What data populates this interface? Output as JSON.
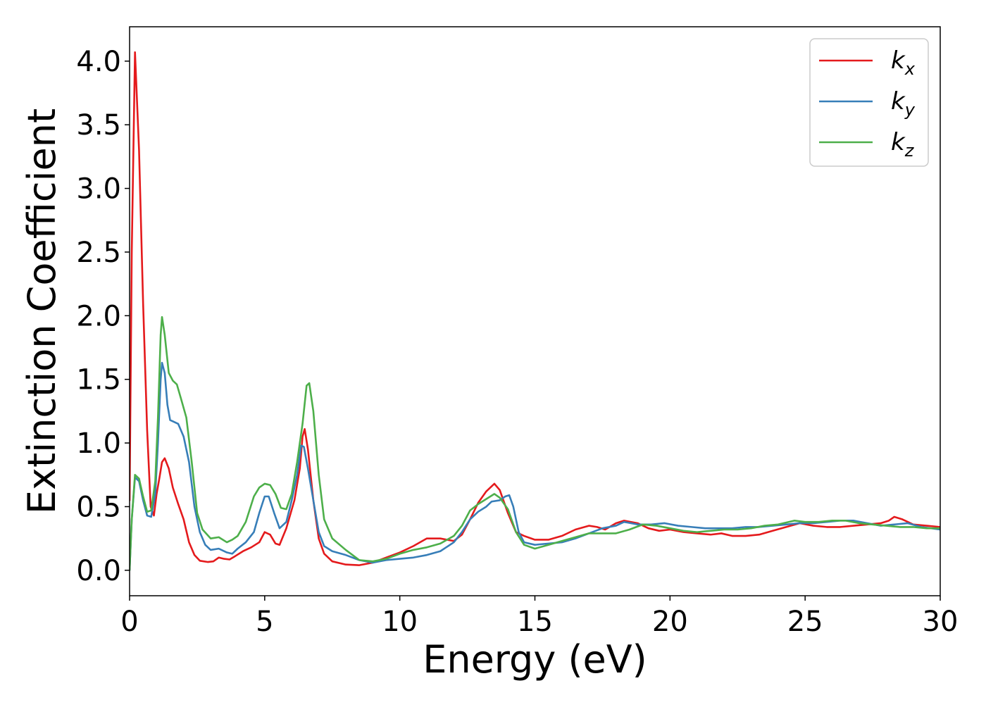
{
  "chart_data": {
    "type": "line",
    "title": "",
    "xlabel": "Energy (eV)",
    "ylabel": "Extinction Coefficient",
    "xlim": [
      0,
      30
    ],
    "ylim": [
      -0.2,
      4.27
    ],
    "xticks": [
      0,
      5,
      10,
      15,
      20,
      25,
      30
    ],
    "yticks": [
      0.0,
      0.5,
      1.0,
      1.5,
      2.0,
      2.5,
      3.0,
      3.5,
      4.0
    ],
    "xtick_labels": [
      "0",
      "5",
      "10",
      "15",
      "20",
      "25",
      "30"
    ],
    "ytick_labels": [
      "0.0",
      "0.5",
      "1.0",
      "1.5",
      "2.0",
      "2.5",
      "3.0",
      "3.5",
      "4.0"
    ],
    "grid": false,
    "legend_position": "top-right",
    "series": [
      {
        "name": "k",
        "subscript": "x",
        "color": "#e41a1c",
        "points": [
          [
            0.0,
            0.55
          ],
          [
            0.08,
            2.5
          ],
          [
            0.2,
            4.07
          ],
          [
            0.35,
            3.3
          ],
          [
            0.5,
            2.1
          ],
          [
            0.65,
            1.1
          ],
          [
            0.78,
            0.5
          ],
          [
            0.9,
            0.43
          ],
          [
            1.0,
            0.6
          ],
          [
            1.1,
            0.72
          ],
          [
            1.2,
            0.85
          ],
          [
            1.3,
            0.88
          ],
          [
            1.45,
            0.8
          ],
          [
            1.6,
            0.65
          ],
          [
            1.8,
            0.52
          ],
          [
            2.0,
            0.4
          ],
          [
            2.2,
            0.22
          ],
          [
            2.4,
            0.12
          ],
          [
            2.6,
            0.075
          ],
          [
            2.9,
            0.065
          ],
          [
            3.1,
            0.07
          ],
          [
            3.3,
            0.1
          ],
          [
            3.5,
            0.09
          ],
          [
            3.7,
            0.085
          ],
          [
            3.9,
            0.11
          ],
          [
            4.2,
            0.15
          ],
          [
            4.5,
            0.18
          ],
          [
            4.8,
            0.22
          ],
          [
            5.0,
            0.3
          ],
          [
            5.2,
            0.28
          ],
          [
            5.4,
            0.21
          ],
          [
            5.55,
            0.2
          ],
          [
            5.8,
            0.33
          ],
          [
            6.1,
            0.55
          ],
          [
            6.3,
            0.8
          ],
          [
            6.4,
            1.05
          ],
          [
            6.48,
            1.11
          ],
          [
            6.6,
            0.95
          ],
          [
            6.8,
            0.55
          ],
          [
            7.0,
            0.25
          ],
          [
            7.2,
            0.13
          ],
          [
            7.5,
            0.07
          ],
          [
            8.0,
            0.045
          ],
          [
            8.5,
            0.04
          ],
          [
            9.0,
            0.06
          ],
          [
            9.5,
            0.1
          ],
          [
            10.0,
            0.14
          ],
          [
            10.5,
            0.19
          ],
          [
            11.0,
            0.25
          ],
          [
            11.5,
            0.25
          ],
          [
            12.0,
            0.23
          ],
          [
            12.3,
            0.28
          ],
          [
            12.6,
            0.4
          ],
          [
            12.9,
            0.53
          ],
          [
            13.2,
            0.62
          ],
          [
            13.5,
            0.68
          ],
          [
            13.7,
            0.63
          ],
          [
            14.0,
            0.45
          ],
          [
            14.3,
            0.3
          ],
          [
            14.6,
            0.27
          ],
          [
            15.0,
            0.24
          ],
          [
            15.5,
            0.24
          ],
          [
            16.0,
            0.27
          ],
          [
            16.5,
            0.32
          ],
          [
            17.0,
            0.35
          ],
          [
            17.3,
            0.34
          ],
          [
            17.6,
            0.32
          ],
          [
            18.0,
            0.37
          ],
          [
            18.3,
            0.39
          ],
          [
            18.8,
            0.37
          ],
          [
            19.2,
            0.33
          ],
          [
            19.6,
            0.31
          ],
          [
            20.0,
            0.32
          ],
          [
            20.5,
            0.3
          ],
          [
            21.0,
            0.29
          ],
          [
            21.5,
            0.28
          ],
          [
            21.9,
            0.29
          ],
          [
            22.3,
            0.27
          ],
          [
            22.8,
            0.27
          ],
          [
            23.3,
            0.28
          ],
          [
            23.8,
            0.31
          ],
          [
            24.3,
            0.34
          ],
          [
            24.8,
            0.37
          ],
          [
            25.3,
            0.35
          ],
          [
            25.8,
            0.34
          ],
          [
            26.3,
            0.34
          ],
          [
            26.8,
            0.35
          ],
          [
            27.3,
            0.36
          ],
          [
            27.8,
            0.37
          ],
          [
            28.1,
            0.39
          ],
          [
            28.3,
            0.42
          ],
          [
            28.6,
            0.4
          ],
          [
            29.0,
            0.36
          ],
          [
            29.5,
            0.35
          ],
          [
            30.0,
            0.34
          ]
        ]
      },
      {
        "name": "k",
        "subscript": "y",
        "color": "#377eb8",
        "points": [
          [
            0.0,
            0.0
          ],
          [
            0.08,
            0.4
          ],
          [
            0.2,
            0.73
          ],
          [
            0.35,
            0.7
          ],
          [
            0.5,
            0.55
          ],
          [
            0.65,
            0.43
          ],
          [
            0.8,
            0.42
          ],
          [
            0.95,
            0.6
          ],
          [
            1.05,
            1.0
          ],
          [
            1.15,
            1.5
          ],
          [
            1.2,
            1.63
          ],
          [
            1.3,
            1.55
          ],
          [
            1.4,
            1.3
          ],
          [
            1.5,
            1.18
          ],
          [
            1.6,
            1.17
          ],
          [
            1.8,
            1.15
          ],
          [
            2.0,
            1.05
          ],
          [
            2.2,
            0.85
          ],
          [
            2.4,
            0.5
          ],
          [
            2.6,
            0.3
          ],
          [
            2.8,
            0.2
          ],
          [
            3.0,
            0.16
          ],
          [
            3.3,
            0.17
          ],
          [
            3.6,
            0.14
          ],
          [
            3.8,
            0.13
          ],
          [
            4.0,
            0.17
          ],
          [
            4.3,
            0.22
          ],
          [
            4.6,
            0.3
          ],
          [
            4.8,
            0.45
          ],
          [
            5.0,
            0.58
          ],
          [
            5.15,
            0.58
          ],
          [
            5.35,
            0.45
          ],
          [
            5.55,
            0.33
          ],
          [
            5.8,
            0.38
          ],
          [
            6.0,
            0.55
          ],
          [
            6.2,
            0.75
          ],
          [
            6.35,
            0.98
          ],
          [
            6.45,
            0.97
          ],
          [
            6.6,
            0.8
          ],
          [
            6.8,
            0.55
          ],
          [
            7.0,
            0.3
          ],
          [
            7.2,
            0.19
          ],
          [
            7.5,
            0.15
          ],
          [
            8.0,
            0.12
          ],
          [
            8.5,
            0.08
          ],
          [
            9.0,
            0.06
          ],
          [
            9.5,
            0.08
          ],
          [
            10.0,
            0.09
          ],
          [
            10.5,
            0.1
          ],
          [
            11.0,
            0.12
          ],
          [
            11.5,
            0.15
          ],
          [
            12.0,
            0.22
          ],
          [
            12.3,
            0.3
          ],
          [
            12.6,
            0.4
          ],
          [
            12.9,
            0.46
          ],
          [
            13.2,
            0.5
          ],
          [
            13.4,
            0.54
          ],
          [
            13.7,
            0.55
          ],
          [
            13.9,
            0.58
          ],
          [
            14.05,
            0.59
          ],
          [
            14.2,
            0.5
          ],
          [
            14.4,
            0.3
          ],
          [
            14.6,
            0.22
          ],
          [
            15.0,
            0.2
          ],
          [
            15.5,
            0.21
          ],
          [
            16.0,
            0.22
          ],
          [
            16.5,
            0.25
          ],
          [
            17.0,
            0.29
          ],
          [
            17.5,
            0.33
          ],
          [
            18.0,
            0.35
          ],
          [
            18.3,
            0.38
          ],
          [
            18.8,
            0.36
          ],
          [
            19.3,
            0.36
          ],
          [
            19.8,
            0.37
          ],
          [
            20.3,
            0.35
          ],
          [
            20.8,
            0.34
          ],
          [
            21.3,
            0.33
          ],
          [
            21.8,
            0.33
          ],
          [
            22.3,
            0.33
          ],
          [
            22.8,
            0.34
          ],
          [
            23.3,
            0.34
          ],
          [
            23.8,
            0.35
          ],
          [
            24.3,
            0.36
          ],
          [
            24.8,
            0.37
          ],
          [
            25.3,
            0.37
          ],
          [
            25.8,
            0.38
          ],
          [
            26.3,
            0.39
          ],
          [
            26.8,
            0.39
          ],
          [
            27.3,
            0.37
          ],
          [
            27.8,
            0.35
          ],
          [
            28.3,
            0.36
          ],
          [
            28.8,
            0.37
          ],
          [
            29.3,
            0.34
          ],
          [
            30.0,
            0.32
          ]
        ]
      },
      {
        "name": "k",
        "subscript": "z",
        "color": "#4daf4a",
        "points": [
          [
            0.0,
            0.0
          ],
          [
            0.08,
            0.4
          ],
          [
            0.2,
            0.75
          ],
          [
            0.35,
            0.72
          ],
          [
            0.5,
            0.58
          ],
          [
            0.65,
            0.46
          ],
          [
            0.8,
            0.47
          ],
          [
            0.95,
            0.7
          ],
          [
            1.05,
            1.2
          ],
          [
            1.15,
            1.85
          ],
          [
            1.2,
            1.99
          ],
          [
            1.3,
            1.85
          ],
          [
            1.45,
            1.55
          ],
          [
            1.6,
            1.49
          ],
          [
            1.75,
            1.46
          ],
          [
            1.9,
            1.35
          ],
          [
            2.1,
            1.2
          ],
          [
            2.3,
            0.85
          ],
          [
            2.5,
            0.45
          ],
          [
            2.7,
            0.32
          ],
          [
            3.0,
            0.25
          ],
          [
            3.3,
            0.26
          ],
          [
            3.6,
            0.22
          ],
          [
            3.8,
            0.24
          ],
          [
            4.0,
            0.27
          ],
          [
            4.3,
            0.38
          ],
          [
            4.6,
            0.58
          ],
          [
            4.8,
            0.65
          ],
          [
            5.0,
            0.68
          ],
          [
            5.2,
            0.67
          ],
          [
            5.4,
            0.6
          ],
          [
            5.6,
            0.49
          ],
          [
            5.8,
            0.48
          ],
          [
            6.0,
            0.6
          ],
          [
            6.2,
            0.85
          ],
          [
            6.4,
            1.15
          ],
          [
            6.55,
            1.45
          ],
          [
            6.65,
            1.47
          ],
          [
            6.8,
            1.25
          ],
          [
            7.0,
            0.75
          ],
          [
            7.2,
            0.4
          ],
          [
            7.5,
            0.25
          ],
          [
            8.0,
            0.16
          ],
          [
            8.5,
            0.08
          ],
          [
            9.0,
            0.07
          ],
          [
            9.5,
            0.09
          ],
          [
            10.0,
            0.13
          ],
          [
            10.5,
            0.16
          ],
          [
            11.0,
            0.18
          ],
          [
            11.5,
            0.21
          ],
          [
            12.0,
            0.27
          ],
          [
            12.3,
            0.35
          ],
          [
            12.6,
            0.47
          ],
          [
            12.9,
            0.52
          ],
          [
            13.2,
            0.56
          ],
          [
            13.5,
            0.6
          ],
          [
            13.7,
            0.57
          ],
          [
            14.0,
            0.48
          ],
          [
            14.3,
            0.3
          ],
          [
            14.6,
            0.2
          ],
          [
            15.0,
            0.17
          ],
          [
            15.5,
            0.2
          ],
          [
            16.0,
            0.23
          ],
          [
            16.5,
            0.26
          ],
          [
            17.0,
            0.29
          ],
          [
            17.5,
            0.29
          ],
          [
            18.0,
            0.29
          ],
          [
            18.5,
            0.32
          ],
          [
            19.0,
            0.36
          ],
          [
            19.5,
            0.35
          ],
          [
            20.0,
            0.33
          ],
          [
            20.5,
            0.31
          ],
          [
            21.0,
            0.3
          ],
          [
            21.5,
            0.31
          ],
          [
            22.0,
            0.32
          ],
          [
            22.5,
            0.32
          ],
          [
            23.0,
            0.33
          ],
          [
            23.5,
            0.35
          ],
          [
            24.0,
            0.36
          ],
          [
            24.6,
            0.39
          ],
          [
            25.0,
            0.38
          ],
          [
            25.5,
            0.38
          ],
          [
            26.0,
            0.39
          ],
          [
            26.5,
            0.39
          ],
          [
            27.0,
            0.37
          ],
          [
            27.5,
            0.36
          ],
          [
            28.0,
            0.35
          ],
          [
            28.5,
            0.34
          ],
          [
            29.0,
            0.34
          ],
          [
            29.5,
            0.33
          ],
          [
            30.0,
            0.33
          ]
        ]
      }
    ]
  }
}
